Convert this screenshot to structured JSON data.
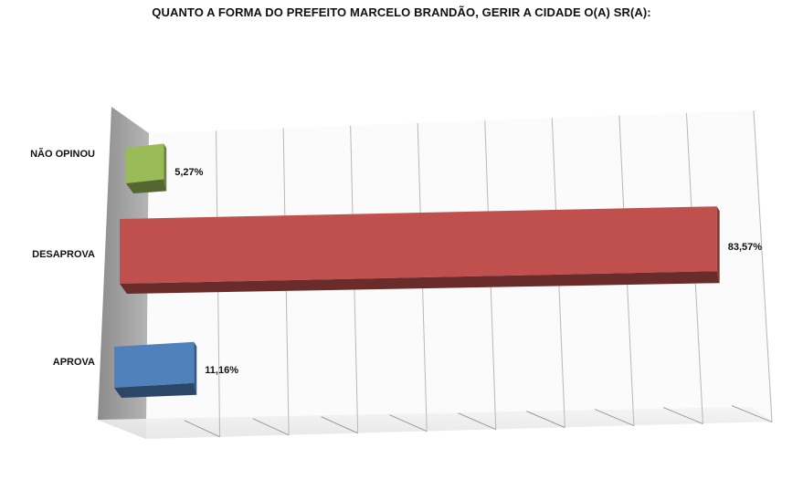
{
  "chart_data": {
    "type": "bar",
    "orientation": "horizontal",
    "three_d": true,
    "title": "QUANTO A FORMA DO PREFEITO MARCELO BRANDÃO, GERIR A CIDADE O(A) SR(A):",
    "categories": [
      "NÃO OPINOU",
      "DESAPROVA",
      "APROVA"
    ],
    "values": [
      5.27,
      83.57,
      11.16
    ],
    "value_labels": [
      "5,27%",
      "83,57%",
      "11,16%"
    ],
    "colors": [
      "#9BBB59",
      "#C0504D",
      "#4F81BD"
    ],
    "xlim": [
      0,
      90
    ],
    "grid": true,
    "legend": "none"
  }
}
